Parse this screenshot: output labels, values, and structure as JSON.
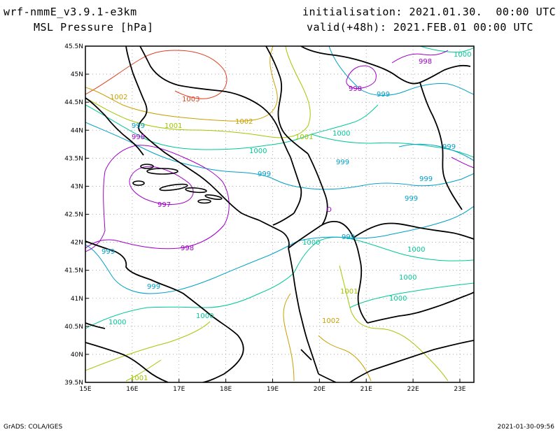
{
  "header": {
    "model": "wrf-nmmE_v3.9.1-e3km",
    "field": "MSL Pressure [hPa]",
    "init": "initialisation: 2021.01.30.  00:00 UTC",
    "valid": "valid(+48h): 2021.FEB.01 00:00 UTC"
  },
  "footer": {
    "left": "GrADS: COLA/IGES",
    "right": "2021-01-30-09:56"
  },
  "axes": {
    "x_ticks": [
      "15E",
      "16E",
      "17E",
      "18E",
      "19E",
      "20E",
      "21E",
      "22E",
      "23E"
    ],
    "y_ticks": [
      "45.5N",
      "45N",
      "44.5N",
      "44N",
      "43.5N",
      "43N",
      "42.5N",
      "42N",
      "41.5N",
      "41N",
      "40.5N",
      "40N",
      "39.5N"
    ],
    "x_range": [
      15,
      23.3
    ],
    "y_range": [
      39.5,
      45.5
    ],
    "grid": "dotted"
  },
  "colors": {
    "997": "#a000c8",
    "998": "#a000c8",
    "999": "#00a0c8",
    "1000": "#00c896",
    "1001": "#a0c800",
    "1002": "#c8a000",
    "1003": "#e04020",
    "coast": "#000000"
  },
  "contour_labels": [
    {
      "id": "l1",
      "text": "1002",
      "c": "1002"
    },
    {
      "id": "l2",
      "text": "1003",
      "c": "1003"
    },
    {
      "id": "l3",
      "text": "1001",
      "c": "1001"
    },
    {
      "id": "l4",
      "text": "1002",
      "c": "1002"
    },
    {
      "id": "l5",
      "text": "999",
      "c": "999"
    },
    {
      "id": "l6",
      "text": "998",
      "c": "998"
    },
    {
      "id": "l7",
      "text": "1000",
      "c": "1000"
    },
    {
      "id": "l8",
      "text": "1001",
      "c": "1001"
    },
    {
      "id": "l9",
      "text": "1000",
      "c": "1000"
    },
    {
      "id": "l10",
      "text": "998",
      "c": "998"
    },
    {
      "id": "l11",
      "text": "999",
      "c": "999"
    },
    {
      "id": "l12",
      "text": "998",
      "c": "998"
    },
    {
      "id": "l13",
      "text": "1000",
      "c": "1000"
    },
    {
      "id": "l14",
      "text": "999",
      "c": "999"
    },
    {
      "id": "l15",
      "text": "999",
      "c": "999"
    },
    {
      "id": "l16",
      "text": "999",
      "c": "999"
    },
    {
      "id": "l17",
      "text": "999",
      "c": "999"
    },
    {
      "id": "l18",
      "text": "999",
      "c": "999"
    },
    {
      "id": "l19",
      "text": "997",
      "c": "997"
    },
    {
      "id": "l20",
      "text": "999",
      "c": "999"
    },
    {
      "id": "l21",
      "text": "998",
      "c": "998"
    },
    {
      "id": "l22",
      "text": "999",
      "c": "999"
    },
    {
      "id": "l23",
      "text": "1000",
      "c": "1000"
    },
    {
      "id": "l24",
      "text": "1000",
      "c": "1000"
    },
    {
      "id": "l25",
      "text": "1000",
      "c": "1000"
    },
    {
      "id": "l26",
      "text": "999",
      "c": "999"
    },
    {
      "id": "l27",
      "text": "1001",
      "c": "1001"
    },
    {
      "id": "l28",
      "text": "1000",
      "c": "1000"
    },
    {
      "id": "l29",
      "text": "1000",
      "c": "1000"
    },
    {
      "id": "l30",
      "text": "1002",
      "c": "1002"
    },
    {
      "id": "l31",
      "text": "1001",
      "c": "1001"
    }
  ]
}
